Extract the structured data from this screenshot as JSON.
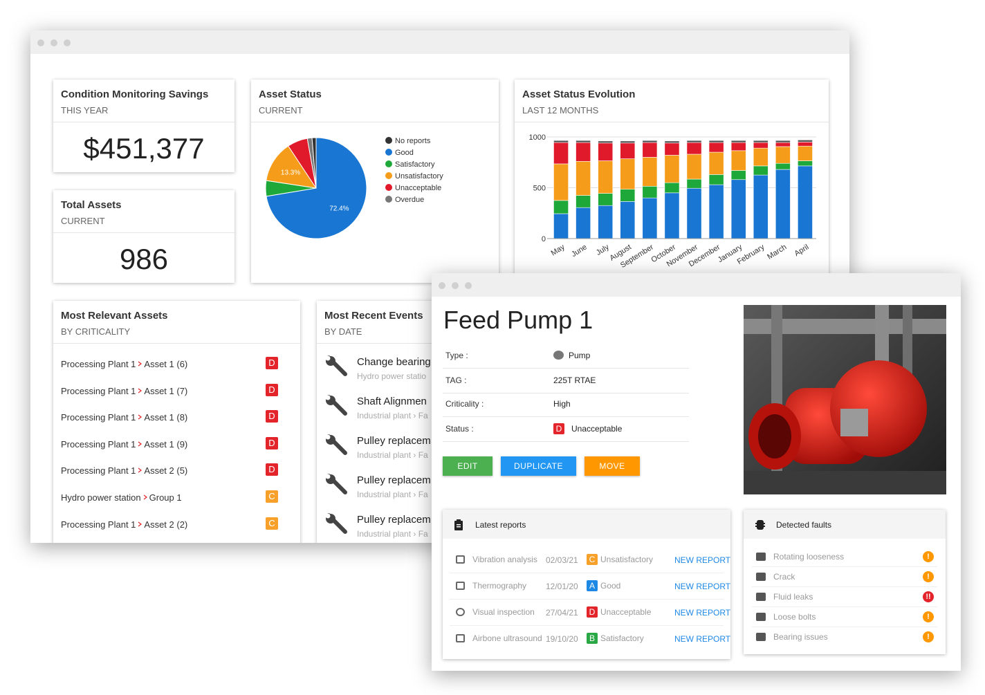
{
  "grade_colors": {
    "A": "#1e88e5",
    "B": "#2aa845",
    "C": "#f7a02a",
    "D": "#e3242b"
  },
  "savings": {
    "title": "Condition Monitoring Savings",
    "subtitle": "THIS YEAR",
    "value": "$451,377"
  },
  "total_assets": {
    "title": "Total Assets",
    "subtitle": "CURRENT",
    "value": "986"
  },
  "chart_data": [
    {
      "type": "pie",
      "title": "Asset Status",
      "subtitle": "CURRENT",
      "categories": [
        "No reports",
        "Good",
        "Satisfactory",
        "Unsatisfactory",
        "Unacceptable",
        "Overdue"
      ],
      "values": [
        1.3,
        72.4,
        5,
        13.3,
        6.5,
        1.5
      ],
      "value_labels": [
        null,
        "72.4%",
        null,
        "13.3%",
        null,
        null
      ],
      "colors": [
        "#333333",
        "#1976d2",
        "#1fa83a",
        "#f59c1a",
        "#e0192b",
        "#777777"
      ]
    },
    {
      "type": "bar",
      "stacked": true,
      "title": "Asset Status Evolution",
      "subtitle": "LAST 12 MONTHS",
      "categories": [
        "May",
        "June",
        "July",
        "August",
        "September",
        "October",
        "November",
        "December",
        "January",
        "February",
        "March",
        "April"
      ],
      "series": [
        {
          "name": "Good",
          "color": "#1976d2",
          "values": [
            245,
            305,
            325,
            365,
            400,
            450,
            495,
            530,
            580,
            625,
            680,
            715
          ]
        },
        {
          "name": "Satisfactory",
          "color": "#1fa83a",
          "values": [
            130,
            120,
            120,
            120,
            115,
            100,
            90,
            100,
            90,
            90,
            60,
            50
          ]
        },
        {
          "name": "Unsatisfactory",
          "color": "#f59c1a",
          "values": [
            360,
            335,
            320,
            300,
            285,
            270,
            245,
            220,
            195,
            175,
            165,
            145
          ]
        },
        {
          "name": "Unacceptable",
          "color": "#e0192b",
          "values": [
            210,
            185,
            175,
            155,
            145,
            120,
            115,
            95,
            80,
            55,
            40,
            40
          ]
        },
        {
          "name": "Overdue",
          "color": "#555555",
          "values": [
            20,
            20,
            20,
            20,
            20,
            20,
            20,
            20,
            20,
            20,
            20,
            20
          ]
        }
      ],
      "ylim": [
        0,
        1000
      ],
      "yticks": [
        0,
        500,
        1000
      ],
      "grid": true
    }
  ],
  "relevant_assets": {
    "title": "Most Relevant Assets",
    "subtitle": "BY CRITICALITY",
    "rows": [
      {
        "plant": "Processing Plant 1",
        "asset": "Asset 1 (6)",
        "grade": "D"
      },
      {
        "plant": "Processing Plant 1",
        "asset": "Asset 1 (7)",
        "grade": "D"
      },
      {
        "plant": "Processing Plant 1",
        "asset": "Asset 1 (8)",
        "grade": "D"
      },
      {
        "plant": "Processing Plant 1",
        "asset": "Asset 1 (9)",
        "grade": "D"
      },
      {
        "plant": "Processing Plant 1",
        "asset": "Asset 2 (5)",
        "grade": "D"
      },
      {
        "plant": "Hydro power station",
        "asset": "Group 1",
        "grade": "C"
      },
      {
        "plant": "Processing Plant 1",
        "asset": "Asset 2 (2)",
        "grade": "C"
      }
    ]
  },
  "recent_events": {
    "title": "Most Recent Events",
    "subtitle": "BY DATE",
    "rows": [
      {
        "title": "Change bearing",
        "location": "Hydro power statio"
      },
      {
        "title": "Shaft Alignmen",
        "location": "Industrial plant › Fa"
      },
      {
        "title": "Pulley replacem",
        "location": "Industrial plant › Fa"
      },
      {
        "title": "Pulley replacem",
        "location": "Industrial plant › Fa"
      },
      {
        "title": "Pulley replacem",
        "location": "Industrial plant › Fa"
      }
    ]
  },
  "asset_detail": {
    "title": "Feed Pump 1",
    "fields": [
      {
        "label": "Type :",
        "value": "Pump"
      },
      {
        "label": "TAG :",
        "value": "225T RTAE"
      },
      {
        "label": "Criticality :",
        "value": "High"
      },
      {
        "label": "Status :",
        "grade": "D",
        "value": "Unacceptable"
      }
    ],
    "buttons": [
      {
        "label": "EDIT",
        "color": "#4caf50"
      },
      {
        "label": "DUPLICATE",
        "color": "#2196f3"
      },
      {
        "label": "MOVE",
        "color": "#ff9800"
      }
    ],
    "reports": {
      "title": "Latest reports",
      "rows": [
        {
          "type": "Vibration analysis",
          "date": "02/03/21",
          "grade": "C",
          "status": "Unsatisfactory",
          "action": "NEW REPORT"
        },
        {
          "type": "Thermography",
          "date": "12/01/20",
          "grade": "A",
          "status": "Good",
          "action": "NEW REPORT"
        },
        {
          "type": "Visual inspection",
          "date": "27/04/21",
          "grade": "D",
          "status": "Unacceptable",
          "action": "NEW REPORT"
        },
        {
          "type": "Airbone ultrasound",
          "date": "19/10/20",
          "grade": "B",
          "status": "Satisfactory",
          "action": "NEW REPORT"
        }
      ]
    },
    "faults": {
      "title": "Detected faults",
      "rows": [
        {
          "name": "Rotating looseness",
          "alert": "!",
          "color": "#ff9800"
        },
        {
          "name": "Crack",
          "alert": "!",
          "color": "#ff9800"
        },
        {
          "name": "Fluid leaks",
          "alert": "!!",
          "color": "#e3242b"
        },
        {
          "name": "Loose bolts",
          "alert": "!",
          "color": "#ff9800"
        },
        {
          "name": "Bearing issues",
          "alert": "!",
          "color": "#ff9800"
        }
      ]
    }
  }
}
